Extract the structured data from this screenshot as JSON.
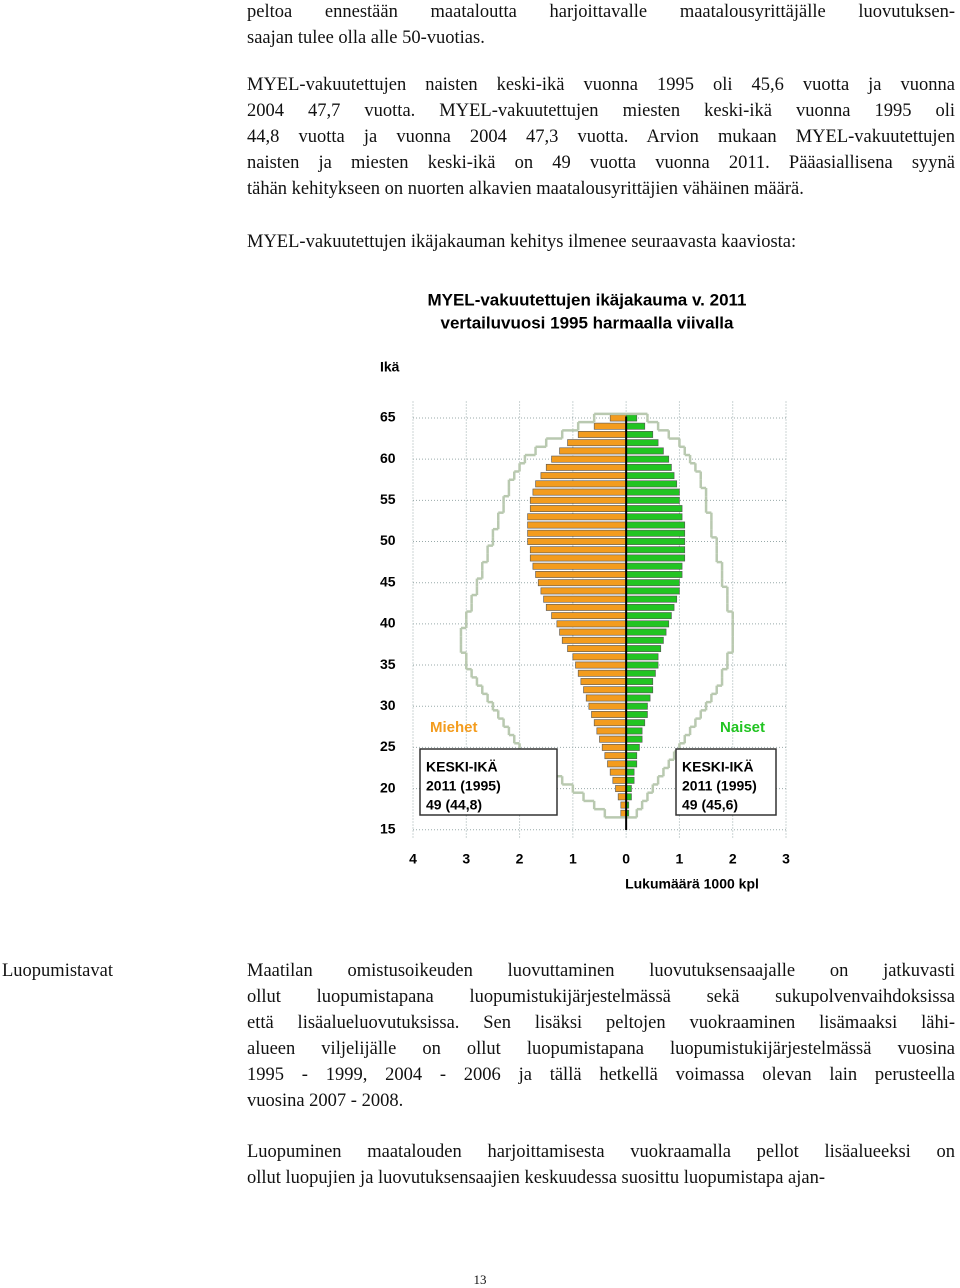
{
  "document": {
    "paragraphs_top": [
      [
        "peltoa ennestään maataloutta harjoittavalle maatalousyrittäjälle luovutuksen-",
        "saajan tulee olla alle 50-vuotias."
      ],
      [
        "MYEL-vakuutettujen naisten keski-ikä vuonna 1995 oli 45,6 vuotta ja vuonna",
        "2004 47,7 vuotta. MYEL-vakuutettujen miesten keski-ikä vuonna 1995 oli",
        "44,8 vuotta ja vuonna 2004 47,3 vuotta. Arvion mukaan MYEL-vakuutettujen",
        "naisten ja miesten keski-ikä on 49 vuotta vuonna 2011. Pääasiallisena syynä",
        "tähän kehitykseen on nuorten alkavien maatalousyrittäjien vähäinen määrä."
      ],
      [
        "MYEL-vakuutettujen ikäjakauman kehitys ilmenee seuraavasta kaaviosta:"
      ]
    ],
    "side_label": "Luopumistavat",
    "paragraphs_bottom": [
      [
        "Maatilan omistusoikeuden luovuttaminen luovutuksensaajalle on jatkuvasti",
        "ollut luopumistapana luopumistukijärjestelmässä sekä sukupolvenvaihdoksissa",
        "että lisäalueluovutuksissa. Sen lisäksi peltojen vuokraaminen lisämaaksi lähi-",
        "alueen viljelijälle on ollut luopumistapana luopumistukijärjestelmässä vuosina",
        "1995 - 1999, 2004 - 2006 ja tällä hetkellä voimassa olevan lain perusteella",
        "vuosina 2007 - 2008."
      ],
      [
        "Luopuminen maatalouden harjoittamisesta vuokraamalla pellot lisäalueeksi on",
        "ollut luopujien ja luovutuksensaajien keskuudessa suosittu luopumistapa ajan-"
      ]
    ],
    "page_number": "13"
  },
  "chart_data": {
    "type": "pyramid",
    "title": "MYEL-vakuutettujen ikäjakauma v. 2011",
    "subtitle": "vertailuvuosi 1995 harmaalla viivalla",
    "ylabel": "Ikä",
    "xlabel": "Lukumäärä 1000 kpl",
    "y": [
      17,
      18,
      19,
      20,
      21,
      22,
      23,
      24,
      25,
      26,
      27,
      28,
      29,
      30,
      31,
      32,
      33,
      34,
      35,
      36,
      37,
      38,
      39,
      40,
      41,
      42,
      43,
      44,
      45,
      46,
      47,
      48,
      49,
      50,
      51,
      52,
      53,
      54,
      55,
      56,
      57,
      58,
      59,
      60,
      61,
      62,
      63,
      64,
      65
    ],
    "series": [
      {
        "name": "Miehet",
        "color": "#f39c1e",
        "side": "left",
        "values": [
          0.1,
          0.1,
          0.15,
          0.2,
          0.25,
          0.3,
          0.35,
          0.4,
          0.45,
          0.5,
          0.55,
          0.6,
          0.65,
          0.7,
          0.75,
          0.8,
          0.85,
          0.9,
          0.95,
          1.0,
          1.1,
          1.2,
          1.25,
          1.3,
          1.4,
          1.5,
          1.55,
          1.6,
          1.65,
          1.7,
          1.75,
          1.8,
          1.8,
          1.85,
          1.85,
          1.85,
          1.85,
          1.8,
          1.8,
          1.75,
          1.7,
          1.6,
          1.5,
          1.4,
          1.25,
          1.1,
          0.9,
          0.6,
          0.3
        ]
      },
      {
        "name": "Naiset",
        "color": "#22c422",
        "side": "right",
        "values": [
          0.05,
          0.05,
          0.1,
          0.1,
          0.15,
          0.15,
          0.2,
          0.2,
          0.25,
          0.3,
          0.3,
          0.35,
          0.4,
          0.4,
          0.45,
          0.5,
          0.5,
          0.55,
          0.6,
          0.6,
          0.65,
          0.7,
          0.75,
          0.8,
          0.85,
          0.9,
          0.95,
          1.0,
          1.0,
          1.05,
          1.05,
          1.1,
          1.1,
          1.1,
          1.1,
          1.1,
          1.05,
          1.05,
          1.0,
          1.0,
          0.95,
          0.9,
          0.85,
          0.8,
          0.7,
          0.6,
          0.5,
          0.35,
          0.2
        ]
      },
      {
        "color": "#b9c9b0",
        "side": "left",
        "style": "step",
        "values": [
          0.4,
          0.6,
          0.8,
          1.0,
          1.2,
          1.4,
          1.6,
          1.8,
          2.0,
          2.1,
          2.2,
          2.3,
          2.4,
          2.5,
          2.6,
          2.7,
          2.8,
          2.9,
          3.0,
          3.0,
          3.1,
          3.1,
          3.1,
          3.0,
          3.0,
          2.9,
          2.9,
          2.8,
          2.8,
          2.7,
          2.7,
          2.6,
          2.6,
          2.5,
          2.5,
          2.4,
          2.4,
          2.3,
          2.3,
          2.2,
          2.2,
          2.1,
          2.0,
          1.9,
          1.7,
          1.5,
          1.2,
          0.9,
          0.6
        ]
      },
      {
        "color": "#b9c9b0",
        "side": "right",
        "style": "step",
        "values": [
          0.2,
          0.3,
          0.4,
          0.5,
          0.6,
          0.7,
          0.8,
          0.9,
          1.0,
          1.1,
          1.2,
          1.3,
          1.4,
          1.5,
          1.6,
          1.7,
          1.8,
          1.8,
          1.9,
          1.9,
          2.0,
          2.0,
          2.0,
          2.0,
          2.0,
          1.9,
          1.9,
          1.9,
          1.8,
          1.8,
          1.8,
          1.7,
          1.7,
          1.7,
          1.6,
          1.6,
          1.6,
          1.5,
          1.5,
          1.5,
          1.4,
          1.4,
          1.3,
          1.2,
          1.1,
          1.0,
          0.8,
          0.6,
          0.4
        ]
      }
    ],
    "xlim": [
      -4,
      3
    ],
    "xticks": [
      {
        "value": -4,
        "label": "4"
      },
      {
        "value": -3,
        "label": "3"
      },
      {
        "value": -2,
        "label": "2"
      },
      {
        "value": -1,
        "label": "1"
      },
      0,
      1,
      2,
      3
    ],
    "ylim": [
      14,
      67
    ],
    "yticks": [
      15,
      20,
      25,
      30,
      35,
      40,
      45,
      50,
      55,
      60,
      65
    ],
    "grid": true,
    "annotations": [
      {
        "side": "left",
        "lines": [
          "KESKI-IKÄ",
          "2011 (1995)",
          "49 (44,8)"
        ]
      },
      {
        "side": "right",
        "lines": [
          "KESKI-IKÄ",
          "2011 (1995)",
          "49 (45,6)"
        ]
      }
    ]
  }
}
